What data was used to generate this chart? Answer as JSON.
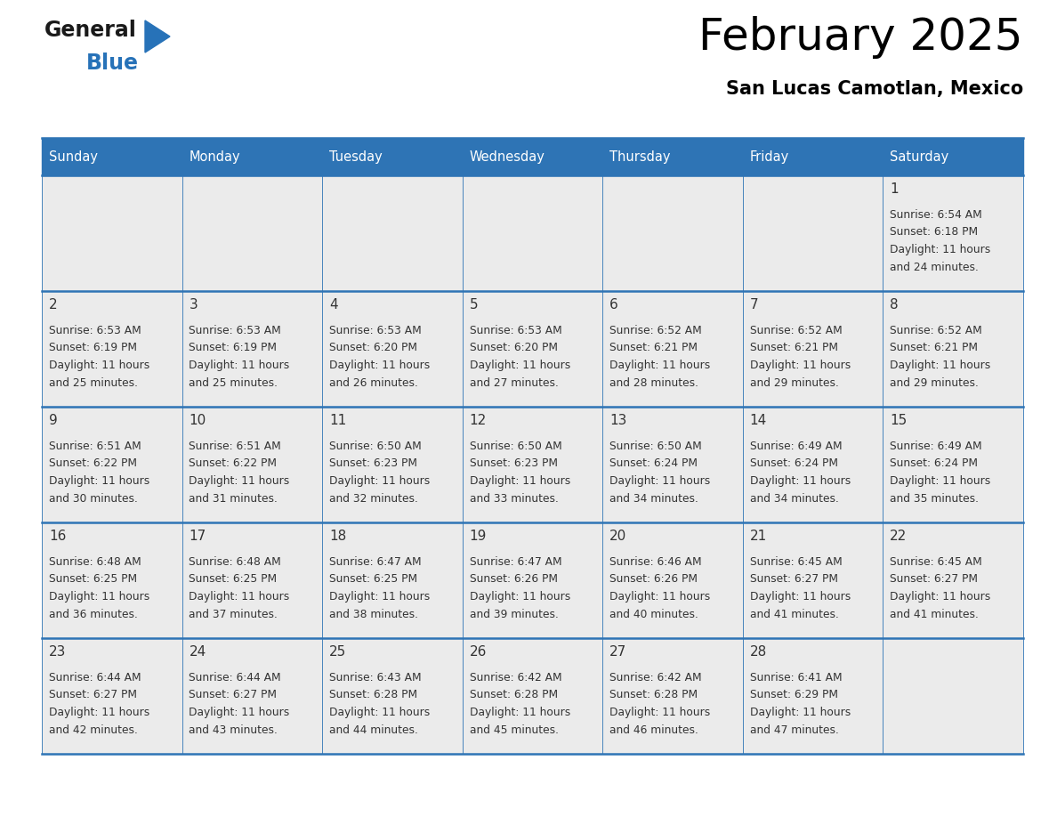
{
  "title": "February 2025",
  "subtitle": "San Lucas Camotlan, Mexico",
  "header_bg": "#2E74B5",
  "header_text_color": "#FFFFFF",
  "days_of_week": [
    "Sunday",
    "Monday",
    "Tuesday",
    "Wednesday",
    "Thursday",
    "Friday",
    "Saturday"
  ],
  "cell_bg": "#EBEBEB",
  "cell_line_color": "#2E74B5",
  "text_color": "#333333",
  "day_num_color": "#333333",
  "calendar_data": [
    [
      null,
      null,
      null,
      null,
      null,
      null,
      {
        "day": "1",
        "sunrise": "6:54 AM",
        "sunset": "6:18 PM",
        "daylight_h": "11 hours",
        "daylight_m": "and 24 minutes."
      }
    ],
    [
      {
        "day": "2",
        "sunrise": "6:53 AM",
        "sunset": "6:19 PM",
        "daylight_h": "11 hours",
        "daylight_m": "and 25 minutes."
      },
      {
        "day": "3",
        "sunrise": "6:53 AM",
        "sunset": "6:19 PM",
        "daylight_h": "11 hours",
        "daylight_m": "and 25 minutes."
      },
      {
        "day": "4",
        "sunrise": "6:53 AM",
        "sunset": "6:20 PM",
        "daylight_h": "11 hours",
        "daylight_m": "and 26 minutes."
      },
      {
        "day": "5",
        "sunrise": "6:53 AM",
        "sunset": "6:20 PM",
        "daylight_h": "11 hours",
        "daylight_m": "and 27 minutes."
      },
      {
        "day": "6",
        "sunrise": "6:52 AM",
        "sunset": "6:21 PM",
        "daylight_h": "11 hours",
        "daylight_m": "and 28 minutes."
      },
      {
        "day": "7",
        "sunrise": "6:52 AM",
        "sunset": "6:21 PM",
        "daylight_h": "11 hours",
        "daylight_m": "and 29 minutes."
      },
      {
        "day": "8",
        "sunrise": "6:52 AM",
        "sunset": "6:21 PM",
        "daylight_h": "11 hours",
        "daylight_m": "and 29 minutes."
      }
    ],
    [
      {
        "day": "9",
        "sunrise": "6:51 AM",
        "sunset": "6:22 PM",
        "daylight_h": "11 hours",
        "daylight_m": "and 30 minutes."
      },
      {
        "day": "10",
        "sunrise": "6:51 AM",
        "sunset": "6:22 PM",
        "daylight_h": "11 hours",
        "daylight_m": "and 31 minutes."
      },
      {
        "day": "11",
        "sunrise": "6:50 AM",
        "sunset": "6:23 PM",
        "daylight_h": "11 hours",
        "daylight_m": "and 32 minutes."
      },
      {
        "day": "12",
        "sunrise": "6:50 AM",
        "sunset": "6:23 PM",
        "daylight_h": "11 hours",
        "daylight_m": "and 33 minutes."
      },
      {
        "day": "13",
        "sunrise": "6:50 AM",
        "sunset": "6:24 PM",
        "daylight_h": "11 hours",
        "daylight_m": "and 34 minutes."
      },
      {
        "day": "14",
        "sunrise": "6:49 AM",
        "sunset": "6:24 PM",
        "daylight_h": "11 hours",
        "daylight_m": "and 34 minutes."
      },
      {
        "day": "15",
        "sunrise": "6:49 AM",
        "sunset": "6:24 PM",
        "daylight_h": "11 hours",
        "daylight_m": "and 35 minutes."
      }
    ],
    [
      {
        "day": "16",
        "sunrise": "6:48 AM",
        "sunset": "6:25 PM",
        "daylight_h": "11 hours",
        "daylight_m": "and 36 minutes."
      },
      {
        "day": "17",
        "sunrise": "6:48 AM",
        "sunset": "6:25 PM",
        "daylight_h": "11 hours",
        "daylight_m": "and 37 minutes."
      },
      {
        "day": "18",
        "sunrise": "6:47 AM",
        "sunset": "6:25 PM",
        "daylight_h": "11 hours",
        "daylight_m": "and 38 minutes."
      },
      {
        "day": "19",
        "sunrise": "6:47 AM",
        "sunset": "6:26 PM",
        "daylight_h": "11 hours",
        "daylight_m": "and 39 minutes."
      },
      {
        "day": "20",
        "sunrise": "6:46 AM",
        "sunset": "6:26 PM",
        "daylight_h": "11 hours",
        "daylight_m": "and 40 minutes."
      },
      {
        "day": "21",
        "sunrise": "6:45 AM",
        "sunset": "6:27 PM",
        "daylight_h": "11 hours",
        "daylight_m": "and 41 minutes."
      },
      {
        "day": "22",
        "sunrise": "6:45 AM",
        "sunset": "6:27 PM",
        "daylight_h": "11 hours",
        "daylight_m": "and 41 minutes."
      }
    ],
    [
      {
        "day": "23",
        "sunrise": "6:44 AM",
        "sunset": "6:27 PM",
        "daylight_h": "11 hours",
        "daylight_m": "and 42 minutes."
      },
      {
        "day": "24",
        "sunrise": "6:44 AM",
        "sunset": "6:27 PM",
        "daylight_h": "11 hours",
        "daylight_m": "and 43 minutes."
      },
      {
        "day": "25",
        "sunrise": "6:43 AM",
        "sunset": "6:28 PM",
        "daylight_h": "11 hours",
        "daylight_m": "and 44 minutes."
      },
      {
        "day": "26",
        "sunrise": "6:42 AM",
        "sunset": "6:28 PM",
        "daylight_h": "11 hours",
        "daylight_m": "and 45 minutes."
      },
      {
        "day": "27",
        "sunrise": "6:42 AM",
        "sunset": "6:28 PM",
        "daylight_h": "11 hours",
        "daylight_m": "and 46 minutes."
      },
      {
        "day": "28",
        "sunrise": "6:41 AM",
        "sunset": "6:29 PM",
        "daylight_h": "11 hours",
        "daylight_m": "and 47 minutes."
      },
      null
    ]
  ],
  "logo_general_color": "#1A1A1A",
  "logo_blue_color": "#2772B8"
}
